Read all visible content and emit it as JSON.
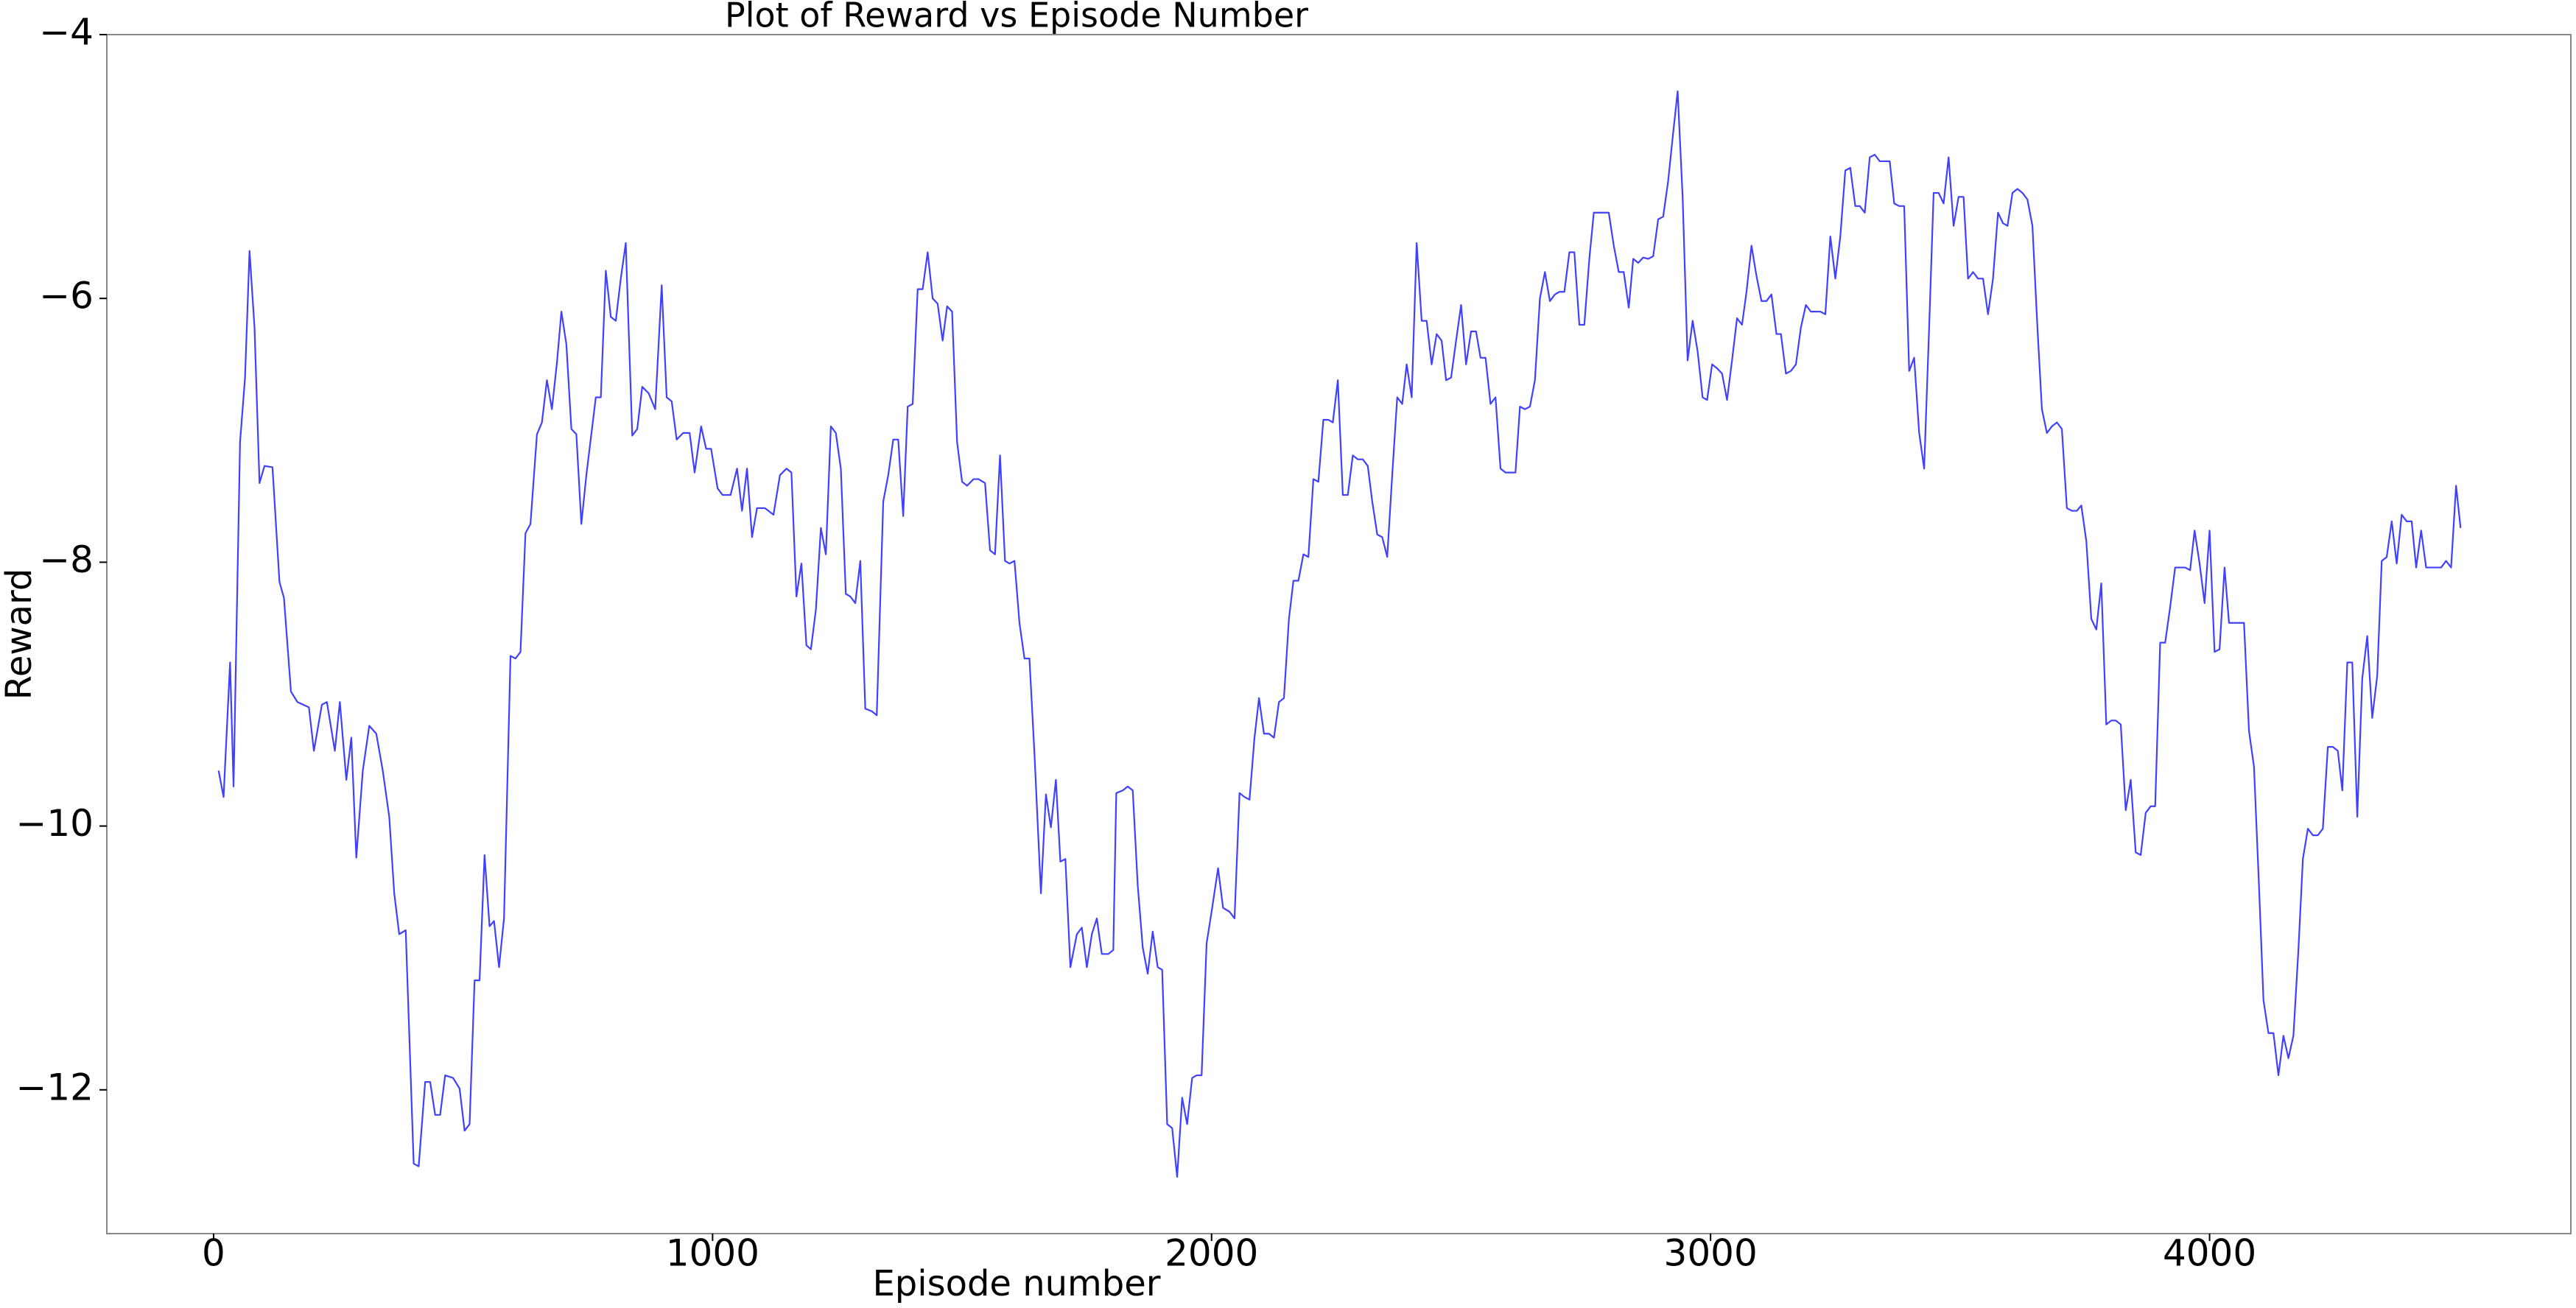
{
  "chart_data": {
    "type": "line",
    "title": "Plot of Reward vs Episode Number",
    "x_label": "Episode number",
    "y_label": "Reward",
    "color": "#0000ff",
    "xlim": [
      -214,
      4724
    ],
    "ylim": [
      -13.09,
      -4.0
    ],
    "xticks": [
      0,
      1000,
      2000,
      3000,
      4000
    ],
    "yticks": [
      {
        "value": -4,
        "label": "−4"
      },
      {
        "value": -6,
        "label": "−6"
      },
      {
        "value": -8,
        "label": "−8"
      },
      {
        "value": -10,
        "label": "−10"
      },
      {
        "value": -12,
        "label": "−12"
      }
    ],
    "grid": false,
    "x": [
      10,
      20,
      33,
      40,
      53,
      63,
      72,
      82,
      92,
      102,
      118,
      132,
      141,
      155,
      168,
      191,
      201,
      217,
      227,
      243,
      253,
      266,
      276,
      286,
      299,
      312,
      326,
      339,
      352,
      362,
      372,
      385,
      401,
      411,
      424,
      434,
      444,
      454,
      464,
      480,
      493,
      503,
      513,
      523,
      533,
      543,
      553,
      562,
      572,
      582,
      595,
      605,
      615,
      625,
      635,
      648,
      658,
      668,
      678,
      688,
      697,
      707,
      717,
      727,
      737,
      747,
      766,
      776,
      786,
      796,
      806,
      816,
      826,
      839,
      849,
      859,
      872,
      885,
      898,
      908,
      918,
      928,
      941,
      954,
      964,
      977,
      987,
      997,
      1010,
      1020,
      1036,
      1049,
      1059,
      1069,
      1079,
      1089,
      1105,
      1122,
      1135,
      1148,
      1158,
      1168,
      1178,
      1188,
      1197,
      1207,
      1217,
      1227,
      1237,
      1247,
      1257,
      1267,
      1276,
      1286,
      1296,
      1306,
      1319,
      1329,
      1342,
      1352,
      1362,
      1372,
      1382,
      1391,
      1401,
      1411,
      1421,
      1431,
      1441,
      1451,
      1461,
      1470,
      1480,
      1490,
      1500,
      1510,
      1523,
      1533,
      1546,
      1556,
      1566,
      1576,
      1586,
      1595,
      1605,
      1615,
      1625,
      1635,
      1645,
      1658,
      1668,
      1678,
      1688,
      1697,
      1707,
      1717,
      1730,
      1740,
      1750,
      1760,
      1770,
      1780,
      1793,
      1803,
      1809,
      1822,
      1832,
      1842,
      1852,
      1862,
      1872,
      1882,
      1892,
      1901,
      1911,
      1921,
      1931,
      1941,
      1951,
      1961,
      1970,
      1980,
      1990,
      2000,
      2013,
      2023,
      2036,
      2046,
      2056,
      2066,
      2076,
      2086,
      2095,
      2105,
      2115,
      2125,
      2135,
      2145,
      2155,
      2164,
      2174,
      2184,
      2194,
      2204,
      2214,
      2224,
      2234,
      2243,
      2253,
      2263,
      2273,
      2283,
      2293,
      2303,
      2313,
      2322,
      2332,
      2342,
      2352,
      2362,
      2372,
      2382,
      2391,
      2401,
      2411,
      2421,
      2431,
      2441,
      2451,
      2461,
      2470,
      2480,
      2490,
      2500,
      2510,
      2520,
      2530,
      2539,
      2549,
      2559,
      2569,
      2579,
      2589,
      2599,
      2609,
      2618,
      2628,
      2638,
      2648,
      2658,
      2668,
      2678,
      2688,
      2697,
      2707,
      2717,
      2727,
      2737,
      2747,
      2757,
      2766,
      2776,
      2786,
      2796,
      2806,
      2816,
      2826,
      2836,
      2845,
      2855,
      2865,
      2875,
      2885,
      2895,
      2905,
      2915,
      2924,
      2934,
      2944,
      2954,
      2964,
      2974,
      2984,
      2993,
      3003,
      3013,
      3023,
      3033,
      3043,
      3053,
      3063,
      3072,
      3082,
      3092,
      3102,
      3112,
      3122,
      3132,
      3141,
      3151,
      3161,
      3171,
      3181,
      3191,
      3201,
      3211,
      3220,
      3230,
      3240,
      3250,
      3260,
      3270,
      3280,
      3290,
      3299,
      3309,
      3319,
      3329,
      3339,
      3349,
      3359,
      3368,
      3378,
      3388,
      3398,
      3408,
      3418,
      3428,
      3438,
      3447,
      3457,
      3467,
      3477,
      3487,
      3497,
      3507,
      3516,
      3526,
      3536,
      3546,
      3556,
      3566,
      3576,
      3586,
      3595,
      3605,
      3615,
      3625,
      3635,
      3645,
      3655,
      3664,
      3674,
      3684,
      3694,
      3704,
      3714,
      3724,
      3734,
      3743,
      3753,
      3763,
      3773,
      3783,
      3793,
      3803,
      3812,
      3822,
      3832,
      3842,
      3852,
      3862,
      3872,
      3882,
      3891,
      3901,
      3911,
      3921,
      3931,
      3941,
      3951,
      3961,
      3970,
      3980,
      3990,
      4000,
      4010,
      4020,
      4030,
      4039,
      4049,
      4059,
      4069,
      4079,
      4089,
      4099,
      4108,
      4118,
      4128,
      4138,
      4148,
      4158,
      4168,
      4178,
      4187,
      4197,
      4207,
      4217,
      4227,
      4237,
      4247,
      4257,
      4266,
      4276,
      4286,
      4296,
      4306,
      4316,
      4326,
      4336,
      4345,
      4355,
      4365,
      4375,
      4385,
      4395,
      4405,
      4414,
      4424,
      4434,
      4444,
      4454,
      4464,
      4474,
      4484,
      4494,
      4503
    ],
    "values": [
      -9.58,
      -9.78,
      -8.76,
      -9.7,
      -7.09,
      -6.6,
      -5.64,
      -6.22,
      -7.4,
      -7.27,
      -7.28,
      -8.15,
      -8.27,
      -8.98,
      -9.06,
      -9.1,
      -9.43,
      -9.08,
      -9.06,
      -9.43,
      -9.06,
      -9.65,
      -9.33,
      -10.24,
      -9.58,
      -9.24,
      -9.3,
      -9.58,
      -9.93,
      -10.51,
      -10.82,
      -10.79,
      -12.56,
      -12.58,
      -11.94,
      -11.94,
      -12.19,
      -12.19,
      -11.89,
      -11.91,
      -11.99,
      -12.31,
      -12.26,
      -11.17,
      -11.17,
      -10.22,
      -10.76,
      -10.72,
      -11.07,
      -10.7,
      -8.71,
      -8.73,
      -8.68,
      -7.78,
      -7.71,
      -7.03,
      -6.94,
      -6.62,
      -6.84,
      -6.49,
      -6.1,
      -6.35,
      -6.99,
      -7.03,
      -7.71,
      -7.34,
      -6.75,
      -6.75,
      -5.79,
      -6.14,
      -6.17,
      -5.85,
      -5.58,
      -7.04,
      -6.99,
      -6.67,
      -6.72,
      -6.84,
      -5.9,
      -6.75,
      -6.78,
      -7.07,
      -7.02,
      -7.02,
      -7.32,
      -6.97,
      -7.14,
      -7.14,
      -7.44,
      -7.49,
      -7.49,
      -7.29,
      -7.61,
      -7.29,
      -7.81,
      -7.59,
      -7.59,
      -7.64,
      -7.34,
      -7.29,
      -7.32,
      -8.26,
      -8.01,
      -8.63,
      -8.66,
      -8.36,
      -7.74,
      -7.94,
      -6.97,
      -7.02,
      -7.29,
      -8.24,
      -8.26,
      -8.31,
      -7.99,
      -9.11,
      -9.13,
      -9.16,
      -7.54,
      -7.34,
      -7.07,
      -7.07,
      -7.65,
      -6.82,
      -6.8,
      -5.93,
      -5.93,
      -5.65,
      -6.0,
      -6.04,
      -6.32,
      -6.06,
      -6.1,
      -7.09,
      -7.39,
      -7.42,
      -7.37,
      -7.37,
      -7.4,
      -7.91,
      -7.94,
      -7.19,
      -7.99,
      -8.01,
      -7.99,
      -8.46,
      -8.73,
      -8.73,
      -9.45,
      -10.51,
      -9.76,
      -10.01,
      -9.65,
      -10.27,
      -10.25,
      -11.07,
      -10.82,
      -10.77,
      -11.07,
      -10.82,
      -10.7,
      -10.97,
      -10.97,
      -10.94,
      -9.75,
      -9.73,
      -9.7,
      -9.73,
      -10.45,
      -10.92,
      -11.12,
      -10.8,
      -11.07,
      -11.09,
      -12.26,
      -12.29,
      -12.66,
      -12.06,
      -12.26,
      -11.91,
      -11.89,
      -11.89,
      -10.89,
      -10.65,
      -10.32,
      -10.62,
      -10.65,
      -10.7,
      -9.75,
      -9.78,
      -9.8,
      -9.33,
      -9.03,
      -9.3,
      -9.3,
      -9.33,
      -9.06,
      -9.03,
      -8.43,
      -8.14,
      -8.14,
      -7.94,
      -7.96,
      -7.37,
      -7.39,
      -6.92,
      -6.92,
      -6.94,
      -6.62,
      -7.49,
      -7.49,
      -7.19,
      -7.22,
      -7.22,
      -7.27,
      -7.54,
      -7.79,
      -7.81,
      -7.96,
      -7.34,
      -6.75,
      -6.8,
      -6.5,
      -6.75,
      -5.58,
      -6.17,
      -6.17,
      -6.5,
      -6.27,
      -6.32,
      -6.62,
      -6.6,
      -6.32,
      -6.05,
      -6.5,
      -6.25,
      -6.25,
      -6.45,
      -6.45,
      -6.8,
      -6.75,
      -7.29,
      -7.32,
      -7.32,
      -7.32,
      -6.82,
      -6.84,
      -6.82,
      -6.62,
      -6.0,
      -5.8,
      -6.02,
      -5.97,
      -5.95,
      -5.95,
      -5.65,
      -5.65,
      -6.2,
      -6.2,
      -5.7,
      -5.35,
      -5.35,
      -5.35,
      -5.35,
      -5.6,
      -5.8,
      -5.8,
      -6.07,
      -5.7,
      -5.73,
      -5.69,
      -5.7,
      -5.68,
      -5.4,
      -5.38,
      -5.11,
      -4.78,
      -4.43,
      -5.23,
      -6.47,
      -6.17,
      -6.4,
      -6.75,
      -6.77,
      -6.5,
      -6.53,
      -6.57,
      -6.77,
      -6.47,
      -6.15,
      -6.2,
      -5.95,
      -5.6,
      -5.83,
      -6.02,
      -6.02,
      -5.97,
      -6.27,
      -6.27,
      -6.57,
      -6.55,
      -6.5,
      -6.22,
      -6.05,
      -6.1,
      -6.1,
      -6.1,
      -6.12,
      -5.53,
      -5.85,
      -5.53,
      -5.03,
      -5.01,
      -5.3,
      -5.3,
      -5.35,
      -4.93,
      -4.91,
      -4.96,
      -4.96,
      -4.96,
      -5.28,
      -5.3,
      -5.3,
      -6.55,
      -6.45,
      -7.02,
      -7.29,
      -6.22,
      -5.2,
      -5.2,
      -5.28,
      -4.93,
      -5.45,
      -5.23,
      -5.23,
      -5.85,
      -5.8,
      -5.85,
      -5.85,
      -6.12,
      -5.85,
      -5.35,
      -5.43,
      -5.45,
      -5.2,
      -5.17,
      -5.2,
      -5.25,
      -5.45,
      -6.22,
      -6.84,
      -7.02,
      -6.97,
      -6.94,
      -6.99,
      -7.59,
      -7.61,
      -7.61,
      -7.57,
      -7.84,
      -8.43,
      -8.51,
      -8.16,
      -9.23,
      -9.2,
      -9.2,
      -9.23,
      -9.88,
      -9.65,
      -10.2,
      -10.22,
      -9.9,
      -9.85,
      -9.85,
      -8.61,
      -8.61,
      -8.34,
      -8.04,
      -8.04,
      -8.04,
      -8.06,
      -7.76,
      -8.01,
      -8.31,
      -7.76,
      -8.68,
      -8.66,
      -8.04,
      -8.46,
      -8.46,
      -8.46,
      -8.46,
      -9.28,
      -9.55,
      -10.45,
      -11.32,
      -11.57,
      -11.57,
      -11.89,
      -11.59,
      -11.76,
      -11.59,
      -10.94,
      -10.25,
      -10.02,
      -10.07,
      -10.07,
      -10.02,
      -9.4,
      -9.4,
      -9.43,
      -9.73,
      -8.76,
      -8.76,
      -9.93,
      -8.88,
      -8.56,
      -9.18,
      -8.86,
      -7.99,
      -7.96,
      -7.69,
      -8.01,
      -7.64,
      -7.69,
      -7.69,
      -8.04,
      -7.76,
      -8.04,
      -8.04,
      -8.04,
      -8.04,
      -7.99,
      -8.04,
      -7.42,
      -7.74
    ]
  }
}
